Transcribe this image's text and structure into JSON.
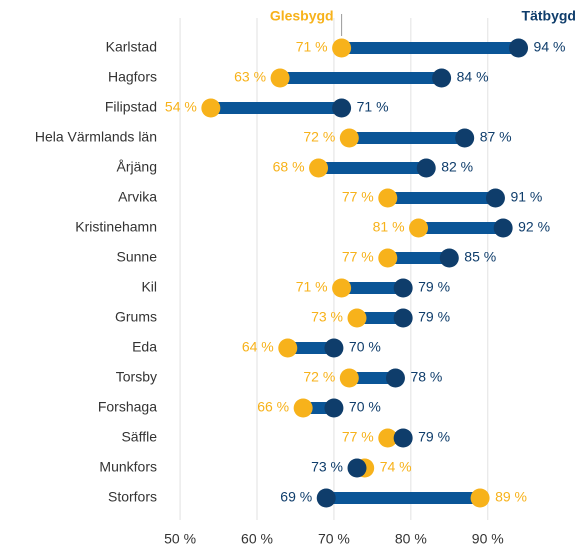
{
  "chart_data": {
    "type": "dumbbell",
    "categories": [
      "Karlstad",
      "Hagfors",
      "Filipstad",
      "Hela Värmlands län",
      "Årjäng",
      "Arvika",
      "Kristinehamn",
      "Sunne",
      "Kil",
      "Grums",
      "Eda",
      "Torsby",
      "Forshaga",
      "Säffle",
      "Munkfors",
      "Storfors"
    ],
    "series": [
      {
        "name": "Glesbygd",
        "color": "#f7b21b",
        "values": [
          71,
          63,
          54,
          72,
          68,
          77,
          81,
          77,
          71,
          73,
          64,
          72,
          66,
          77,
          74,
          89
        ],
        "value_labels": [
          "71 %",
          "63 %",
          "54 %",
          "72 %",
          "68 %",
          "77 %",
          "81 %",
          "77 %",
          "71 %",
          "73 %",
          "64 %",
          "72 %",
          "66 %",
          "77 %",
          "74 %",
          "89 %"
        ]
      },
      {
        "name": "Tätbygd",
        "color": "#0f3d6b",
        "values": [
          94,
          84,
          71,
          87,
          82,
          91,
          92,
          85,
          79,
          79,
          70,
          78,
          70,
          79,
          73,
          69
        ],
        "value_labels": [
          "94 %",
          "84 %",
          "71 %",
          "87 %",
          "82 %",
          "91 %",
          "92 %",
          "85 %",
          "79 %",
          "79 %",
          "70 %",
          "78 %",
          "70 %",
          "79 %",
          "73 %",
          "69 %"
        ]
      }
    ],
    "connector_color": "#0a5597",
    "xlim": [
      47,
      99
    ],
    "xticks": [
      {
        "value": 50,
        "label": "50 %"
      },
      {
        "value": 60,
        "label": "60 %"
      },
      {
        "value": 70,
        "label": "70 %"
      },
      {
        "value": 80,
        "label": "80 %"
      },
      {
        "value": 90,
        "label": "90 %"
      }
    ],
    "grid": true
  }
}
